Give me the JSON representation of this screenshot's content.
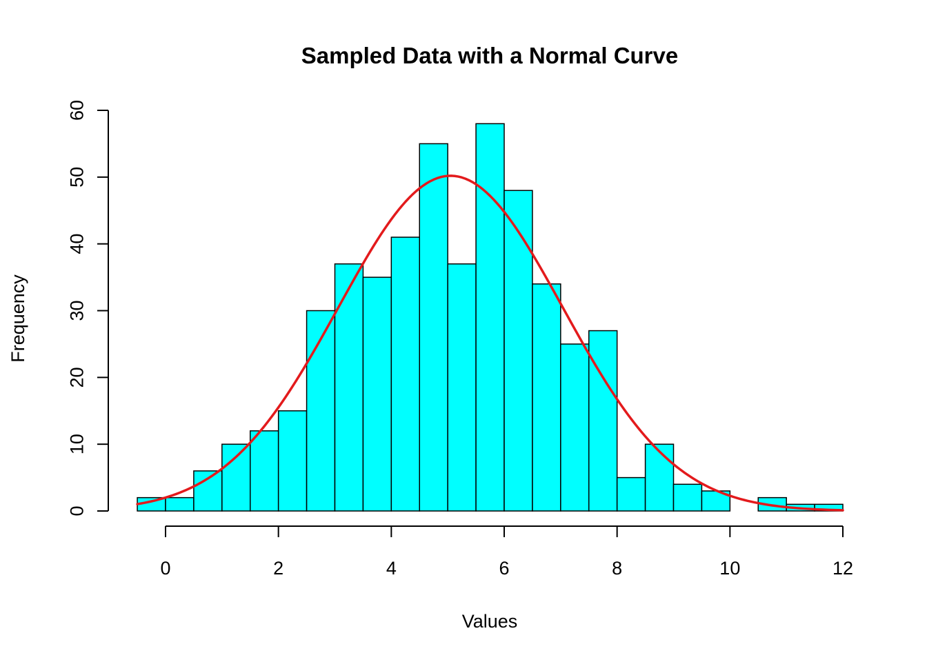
{
  "chart_data": {
    "type": "bar",
    "title": "Sampled Data with a Normal Curve",
    "xlabel": "Values",
    "ylabel": "Frequency",
    "xlim": [
      -0.5,
      12
    ],
    "ylim": [
      0,
      60
    ],
    "x_ticks": [
      0,
      2,
      4,
      6,
      8,
      10,
      12
    ],
    "y_ticks": [
      0,
      10,
      20,
      30,
      40,
      50,
      60
    ],
    "bin_width": 0.5,
    "bins": [
      {
        "start": -0.5,
        "end": 0.0,
        "count": 2
      },
      {
        "start": 0.0,
        "end": 0.5,
        "count": 2
      },
      {
        "start": 0.5,
        "end": 1.0,
        "count": 6
      },
      {
        "start": 1.0,
        "end": 1.5,
        "count": 10
      },
      {
        "start": 1.5,
        "end": 2.0,
        "count": 12
      },
      {
        "start": 2.0,
        "end": 2.5,
        "count": 15
      },
      {
        "start": 2.5,
        "end": 3.0,
        "count": 30
      },
      {
        "start": 3.0,
        "end": 3.5,
        "count": 37
      },
      {
        "start": 3.5,
        "end": 4.0,
        "count": 35
      },
      {
        "start": 4.0,
        "end": 4.5,
        "count": 41
      },
      {
        "start": 4.5,
        "end": 5.0,
        "count": 55
      },
      {
        "start": 5.0,
        "end": 5.5,
        "count": 37
      },
      {
        "start": 5.5,
        "end": 6.0,
        "count": 58
      },
      {
        "start": 6.0,
        "end": 6.5,
        "count": 48
      },
      {
        "start": 6.5,
        "end": 7.0,
        "count": 34
      },
      {
        "start": 7.0,
        "end": 7.5,
        "count": 25
      },
      {
        "start": 7.5,
        "end": 8.0,
        "count": 27
      },
      {
        "start": 8.0,
        "end": 8.5,
        "count": 5
      },
      {
        "start": 8.5,
        "end": 9.0,
        "count": 10
      },
      {
        "start": 9.0,
        "end": 9.5,
        "count": 4
      },
      {
        "start": 9.5,
        "end": 10.0,
        "count": 3
      },
      {
        "start": 10.0,
        "end": 10.5,
        "count": 0
      },
      {
        "start": 10.5,
        "end": 11.0,
        "count": 2
      },
      {
        "start": 11.0,
        "end": 11.5,
        "count": 1
      },
      {
        "start": 11.5,
        "end": 12.0,
        "count": 1
      }
    ],
    "normal_curve": {
      "mean": 5.05,
      "sd": 1.99,
      "peak": 50.2,
      "x_range": [
        -0.5,
        12
      ]
    },
    "grid": false,
    "colors": {
      "bar_fill": "#00FFFF",
      "bar_border": "#000000",
      "curve": "#E31A1C",
      "axis": "#000000"
    }
  }
}
